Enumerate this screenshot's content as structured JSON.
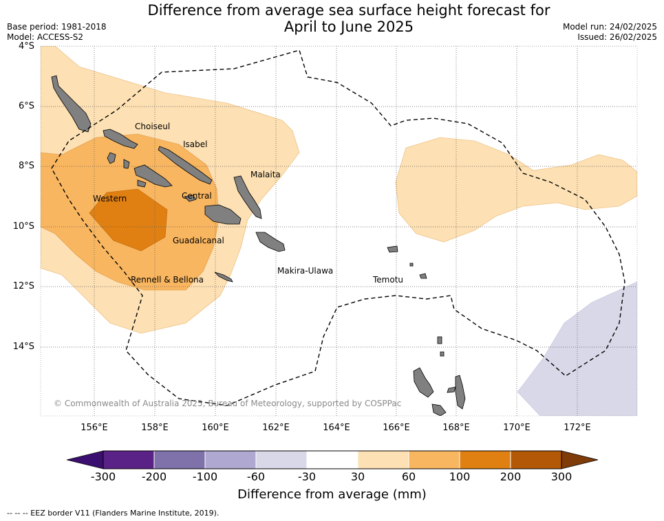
{
  "title": {
    "line1": "Difference from average sea surface height forecast for",
    "line2": "April to June 2025"
  },
  "meta_left": {
    "base_period": "Base period: 1981-2018",
    "model": "Model: ACCESS-S2"
  },
  "meta_right": {
    "model_run": "Model run: 24/02/2025",
    "issued": "Issued: 26/02/2025"
  },
  "axes": {
    "lat_labels": [
      "4°S",
      "6°S",
      "8°S",
      "10°S",
      "12°S",
      "14°S"
    ],
    "lon_labels": [
      "156°E",
      "158°E",
      "160°E",
      "162°E",
      "164°E",
      "166°E",
      "168°E",
      "170°E",
      "172°E"
    ]
  },
  "regions": [
    "Choiseul",
    "Isabel",
    "Malaita",
    "Western",
    "Central",
    "Guadalcanal",
    "Makira-Ulawa",
    "Rennell & Bellona",
    "Temotu"
  ],
  "copyright": "© Commonwealth of Australia 2025, Bureau of Meteorology, supported by COSPPac",
  "colorbar": {
    "ticks": [
      "-300",
      "-200",
      "-100",
      "-60",
      "-30",
      "30",
      "60",
      "100",
      "200",
      "300"
    ],
    "colors": [
      "#3b0f6f",
      "#5a2287",
      "#7f71aa",
      "#afa8d0",
      "#d8d8e8",
      "#ffffff",
      "#fde0b3",
      "#f9b660",
      "#e08013",
      "#b35806",
      "#7f3b08"
    ],
    "title": "Difference from average (mm)"
  },
  "legend_note": "--  --  -- EEZ border V11 (Flanders Marine Institute, 2019)."
}
